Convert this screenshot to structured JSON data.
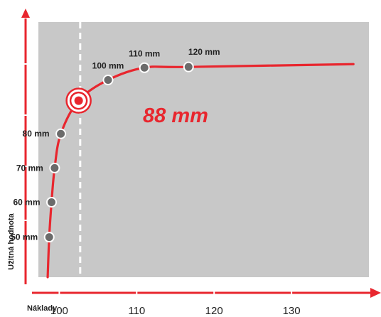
{
  "chart_data": {
    "type": "line",
    "xlabel": "Náklady",
    "ylabel": "Užitná hodnota",
    "x_ticks": [
      100,
      110,
      120,
      130
    ],
    "x_range": [
      97.3,
      140
    ],
    "y_range": [
      0,
      100
    ],
    "grid": false,
    "background_color": "#c8c8c8",
    "accent_color": "#e8262e",
    "marker_color": "#6b6b6b",
    "points": [
      {
        "label": "50 mm",
        "x": 98.7,
        "y": 15.7
      },
      {
        "label": "60 mm",
        "x": 99.0,
        "y": 29.4
      },
      {
        "label": "70 mm",
        "x": 99.4,
        "y": 42.8
      },
      {
        "label": "80 mm",
        "x": 100.2,
        "y": 56.2
      },
      {
        "label": "100 mm",
        "x": 106.3,
        "y": 77.3
      },
      {
        "label": "110 mm",
        "x": 111.0,
        "y": 82.1
      },
      {
        "label": "120 mm",
        "x": 116.7,
        "y": 82.4
      }
    ],
    "highlight": {
      "label": "88 mm",
      "x": 102.5,
      "y": 69.2
    },
    "dashed_reference_x": 102.7,
    "curve_end": {
      "x": 138.0,
      "y": 83.5
    },
    "curve_start": {
      "x": 98.5,
      "y": 0
    }
  }
}
